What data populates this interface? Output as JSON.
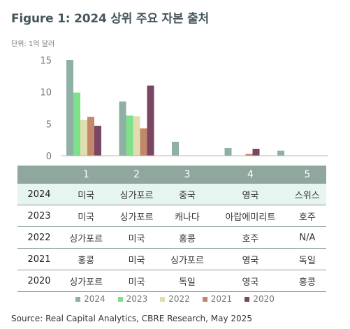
{
  "title": "Figure 1: 2024 상위 주요 자본 출처",
  "unit_label": "단위: 1억 달러",
  "source": "Source: Real Capital Analytics, CBRE Research, May 2025",
  "chart_data": {
    "type": "bar",
    "categories": [
      "1",
      "2",
      "3",
      "4",
      "5"
    ],
    "series": [
      {
        "name": "2024",
        "color": "#8fb0a4",
        "values": [
          15.0,
          8.5,
          2.2,
          1.2,
          0.8
        ]
      },
      {
        "name": "2023",
        "color": "#7fe08a",
        "values": [
          9.9,
          6.3,
          null,
          null,
          null
        ]
      },
      {
        "name": "2022",
        "color": "#e2ddb0",
        "values": [
          5.6,
          6.2,
          null,
          null,
          null
        ]
      },
      {
        "name": "2021",
        "color": "#c3876a",
        "values": [
          6.1,
          4.3,
          null,
          0.3,
          null
        ]
      },
      {
        "name": "2020",
        "color": "#7b4564",
        "values": [
          4.7,
          11.0,
          null,
          1.1,
          null
        ]
      }
    ],
    "yticks": [
      "15",
      "10",
      "5",
      "0"
    ],
    "ylim": [
      0,
      15
    ],
    "legend_position": "bottom",
    "grid": false
  },
  "table": {
    "headers": [
      "1",
      "2",
      "3",
      "4",
      "5"
    ],
    "rows": [
      {
        "year": "2024",
        "cells": [
          "미국",
          "싱가포르",
          "중국",
          "영국",
          "스위스"
        ]
      },
      {
        "year": "2023",
        "cells": [
          "미국",
          "싱가포르",
          "캐나다",
          "아랍에미리트",
          "호주"
        ]
      },
      {
        "year": "2022",
        "cells": [
          "싱가포르",
          "미국",
          "홍콩",
          "호주",
          "N/A"
        ]
      },
      {
        "year": "2021",
        "cells": [
          "홍콩",
          "미국",
          "싱가포르",
          "영국",
          "독일"
        ]
      },
      {
        "year": "2020",
        "cells": [
          "싱가포르",
          "미국",
          "독일",
          "영국",
          "홍콩"
        ]
      }
    ]
  }
}
